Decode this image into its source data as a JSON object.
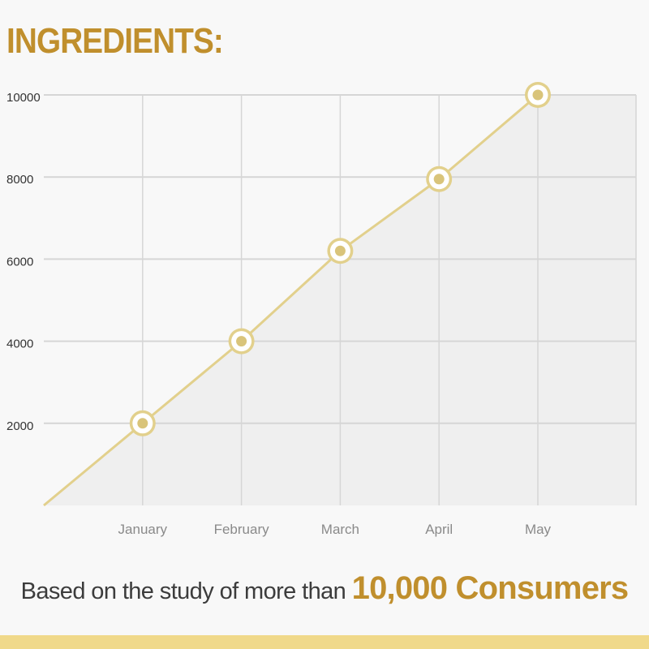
{
  "heading": "INGREDIENTS:",
  "colors": {
    "accent_text": "#c08f2d",
    "line": "#e2d08c",
    "point_fill": "#d9c47a",
    "grid": "#d6d6d6",
    "area": "#efefef",
    "axis_text_y": "#333333",
    "axis_text_x": "#8a8a8a",
    "bottom_bar": "#f0d98a"
  },
  "chart_data": {
    "type": "line",
    "categories": [
      "",
      "January",
      "February",
      "March",
      "April",
      "May"
    ],
    "series": [
      {
        "values": [
          0,
          2000,
          4000,
          6200,
          7950,
          10000
        ]
      }
    ],
    "y_ticks": [
      "10000",
      "8000",
      "6000",
      "4000",
      "2000"
    ],
    "ylim": [
      0,
      10000
    ],
    "grid": true,
    "area_fill": true
  },
  "footer": {
    "prefix": "Based on the study of more than ",
    "highlight": "10,000 Consumers"
  }
}
